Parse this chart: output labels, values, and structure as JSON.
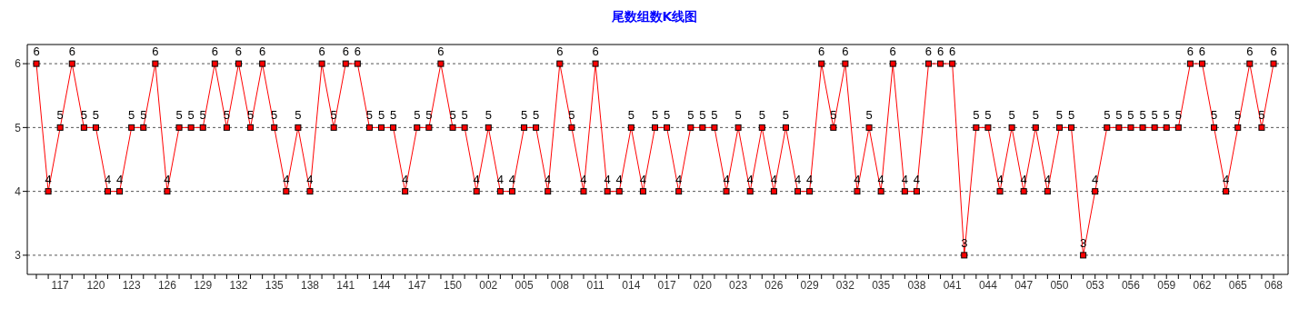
{
  "chart_data": {
    "type": "line",
    "title": "尾数组数K线图",
    "categories": [
      null,
      null,
      "117",
      null,
      null,
      "120",
      null,
      null,
      "123",
      null,
      null,
      "126",
      null,
      null,
      "129",
      null,
      null,
      "132",
      null,
      null,
      "135",
      null,
      null,
      "138",
      null,
      null,
      "141",
      null,
      null,
      "144",
      null,
      null,
      "147",
      null,
      null,
      "150",
      null,
      null,
      "002",
      null,
      null,
      "005",
      null,
      null,
      "008",
      null,
      null,
      "011",
      null,
      null,
      "014",
      null,
      null,
      "017",
      null,
      null,
      "020",
      null,
      null,
      "023",
      null,
      null,
      "026",
      null,
      null,
      "029",
      null,
      null,
      "032",
      null,
      null,
      "035",
      null,
      null,
      "038",
      null,
      null,
      "041",
      null,
      null,
      "044",
      null,
      null,
      "047",
      null,
      null,
      "050",
      null,
      null,
      "053",
      null,
      null,
      "056",
      null,
      null,
      "059",
      null,
      null,
      "062",
      null,
      null,
      "065",
      null,
      null,
      "068"
    ],
    "values": [
      6,
      4,
      5,
      6,
      5,
      5,
      4,
      4,
      5,
      5,
      6,
      4,
      5,
      5,
      5,
      6,
      5,
      6,
      5,
      6,
      5,
      4,
      5,
      4,
      6,
      5,
      6,
      6,
      5,
      5,
      5,
      4,
      5,
      5,
      6,
      5,
      5,
      4,
      5,
      4,
      4,
      5,
      5,
      4,
      6,
      5,
      4,
      6,
      4,
      4,
      5,
      4,
      5,
      5,
      4,
      5,
      5,
      5,
      4,
      5,
      4,
      5,
      4,
      5,
      4,
      4,
      6,
      5,
      6,
      4,
      5,
      4,
      6,
      4,
      4,
      6,
      6,
      6,
      3,
      5,
      5,
      4,
      5,
      4,
      5,
      4,
      5,
      5,
      3,
      4,
      5,
      5,
      5,
      5,
      5,
      5,
      5,
      6,
      6,
      5,
      4,
      5,
      6,
      5,
      6
    ],
    "color": "#ff0000",
    "marker": "square",
    "line_style": "solid",
    "data_labels": true,
    "ylim": [
      2.7,
      6.3
    ],
    "yticks": [
      3,
      4,
      5,
      6
    ],
    "grid": "y",
    "legend": false
  }
}
